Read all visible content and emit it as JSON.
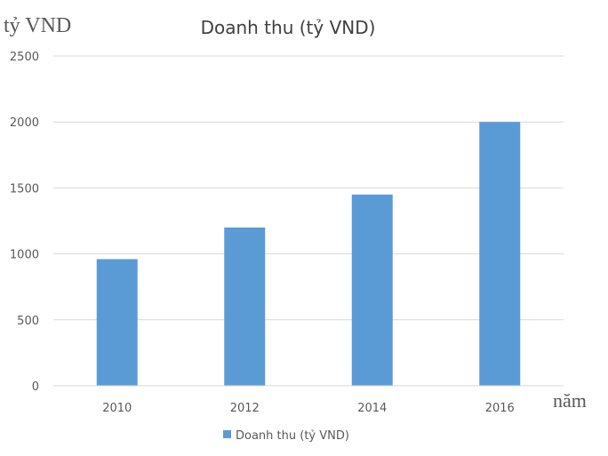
{
  "chart_data": {
    "type": "bar",
    "title": "Doanh thu (tỷ VND)",
    "ylabel": "tỷ VND",
    "xlabel": "năm",
    "categories": [
      "2010",
      "2012",
      "2014",
      "2016"
    ],
    "series": [
      {
        "name": "Doanh thu (tỷ VND)",
        "values": [
          960,
          1200,
          1450,
          2000
        ],
        "color": "#5b9bd5"
      }
    ],
    "ylim": [
      0,
      2500
    ],
    "yticks": [
      "0",
      "500",
      "1000",
      "1500",
      "2000",
      "2500"
    ],
    "grid": true,
    "legend": "bottom"
  }
}
